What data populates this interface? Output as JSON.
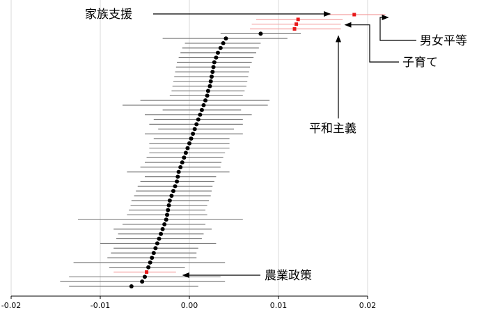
{
  "chart_data": {
    "type": "scatter",
    "subtype": "coefficient-plot-with-confidence-intervals",
    "title": "",
    "xlabel": "",
    "ylabel": "",
    "xlim": [
      -0.02,
      0.02
    ],
    "x_ticks": [
      -0.02,
      -0.01,
      0.0,
      0.01,
      0.02
    ],
    "x_tick_labels": [
      "-0.02",
      "-0.01",
      "0.00",
      "0.01",
      "0.02"
    ],
    "grid": "vertical",
    "colors": {
      "point": "#000000",
      "interval": "#808080",
      "highlight_point": "#e8191a",
      "highlight_interval": "#f4a0a0",
      "gridline": "#d9d9d9",
      "arrow": "#000000"
    },
    "points": [
      {
        "estimate": 0.0185,
        "lower": 0.0155,
        "upper": 0.022,
        "highlight": true,
        "label": "男女平等"
      },
      {
        "estimate": 0.0122,
        "lower": 0.0075,
        "upper": 0.0172,
        "highlight": true,
        "label": "家族支援"
      },
      {
        "estimate": 0.012,
        "lower": 0.007,
        "upper": 0.017,
        "highlight": true,
        "label": "子育て"
      },
      {
        "estimate": 0.0118,
        "lower": 0.0068,
        "upper": 0.017,
        "highlight": true,
        "label": "平和主義"
      },
      {
        "estimate": 0.008,
        "lower": 0.0035,
        "upper": 0.0125,
        "highlight": false
      },
      {
        "estimate": 0.0041,
        "lower": -0.003,
        "upper": 0.011,
        "highlight": false
      },
      {
        "estimate": 0.0038,
        "lower": -0.0005,
        "upper": 0.008,
        "highlight": false
      },
      {
        "estimate": 0.0035,
        "lower": -0.0008,
        "upper": 0.0078,
        "highlight": false
      },
      {
        "estimate": 0.0032,
        "lower": -0.001,
        "upper": 0.0075,
        "highlight": false
      },
      {
        "estimate": 0.003,
        "lower": -0.0012,
        "upper": 0.0072,
        "highlight": false
      },
      {
        "estimate": 0.0028,
        "lower": -0.0014,
        "upper": 0.007,
        "highlight": false
      },
      {
        "estimate": 0.0027,
        "lower": -0.0015,
        "upper": 0.0068,
        "highlight": false
      },
      {
        "estimate": 0.0026,
        "lower": -0.0016,
        "upper": 0.0067,
        "highlight": false
      },
      {
        "estimate": 0.0025,
        "lower": -0.0017,
        "upper": 0.0066,
        "highlight": false
      },
      {
        "estimate": 0.0024,
        "lower": -0.0018,
        "upper": 0.0065,
        "highlight": false
      },
      {
        "estimate": 0.0023,
        "lower": -0.0019,
        "upper": 0.0064,
        "highlight": false
      },
      {
        "estimate": 0.0021,
        "lower": -0.002,
        "upper": 0.0062,
        "highlight": false
      },
      {
        "estimate": 0.002,
        "lower": -0.0022,
        "upper": 0.006,
        "highlight": false
      },
      {
        "estimate": 0.0018,
        "lower": -0.0055,
        "upper": 0.009,
        "highlight": false
      },
      {
        "estimate": 0.0016,
        "lower": -0.0075,
        "upper": 0.0088,
        "highlight": false
      },
      {
        "estimate": 0.0014,
        "lower": -0.003,
        "upper": 0.0058,
        "highlight": false
      },
      {
        "estimate": 0.0012,
        "lower": -0.005,
        "upper": 0.007,
        "highlight": false
      },
      {
        "estimate": 0.001,
        "lower": -0.004,
        "upper": 0.006,
        "highlight": false
      },
      {
        "estimate": 0.0008,
        "lower": -0.0045,
        "upper": 0.006,
        "highlight": false
      },
      {
        "estimate": 0.0006,
        "lower": -0.0035,
        "upper": 0.005,
        "highlight": false
      },
      {
        "estimate": 0.0004,
        "lower": -0.005,
        "upper": 0.006,
        "highlight": false
      },
      {
        "estimate": 0.0002,
        "lower": -0.004,
        "upper": 0.0045,
        "highlight": false
      },
      {
        "estimate": 0.0,
        "lower": -0.0045,
        "upper": 0.0045,
        "highlight": false
      },
      {
        "estimate": -0.0002,
        "lower": -0.0045,
        "upper": 0.0045,
        "highlight": false
      },
      {
        "estimate": -0.0004,
        "lower": -0.0045,
        "upper": 0.004,
        "highlight": false
      },
      {
        "estimate": -0.0006,
        "lower": -0.0048,
        "upper": 0.0038,
        "highlight": false
      },
      {
        "estimate": -0.0008,
        "lower": -0.005,
        "upper": 0.0036,
        "highlight": false
      },
      {
        "estimate": -0.001,
        "lower": -0.0055,
        "upper": 0.0035,
        "highlight": false
      },
      {
        "estimate": -0.0012,
        "lower": -0.007,
        "upper": 0.0045,
        "highlight": false
      },
      {
        "estimate": -0.0013,
        "lower": -0.005,
        "upper": 0.003,
        "highlight": false
      },
      {
        "estimate": -0.0014,
        "lower": -0.0055,
        "upper": 0.0028,
        "highlight": false
      },
      {
        "estimate": -0.0016,
        "lower": -0.0058,
        "upper": 0.0026,
        "highlight": false
      },
      {
        "estimate": -0.0018,
        "lower": -0.006,
        "upper": 0.0025,
        "highlight": false
      },
      {
        "estimate": -0.002,
        "lower": -0.0062,
        "upper": 0.0024,
        "highlight": false
      },
      {
        "estimate": -0.0022,
        "lower": -0.0065,
        "upper": 0.0022,
        "highlight": false
      },
      {
        "estimate": -0.0023,
        "lower": -0.0066,
        "upper": 0.002,
        "highlight": false
      },
      {
        "estimate": -0.0024,
        "lower": -0.0068,
        "upper": 0.0018,
        "highlight": false
      },
      {
        "estimate": -0.0025,
        "lower": -0.007,
        "upper": 0.002,
        "highlight": false
      },
      {
        "estimate": -0.0026,
        "lower": -0.0125,
        "upper": 0.006,
        "highlight": false
      },
      {
        "estimate": -0.0028,
        "lower": -0.0075,
        "upper": 0.0018,
        "highlight": false
      },
      {
        "estimate": -0.003,
        "lower": -0.0085,
        "upper": 0.0025,
        "highlight": false
      },
      {
        "estimate": -0.0032,
        "lower": -0.008,
        "upper": 0.0016,
        "highlight": false
      },
      {
        "estimate": -0.0034,
        "lower": -0.0082,
        "upper": 0.0014,
        "highlight": false
      },
      {
        "estimate": -0.0036,
        "lower": -0.01,
        "upper": 0.003,
        "highlight": false
      },
      {
        "estimate": -0.0038,
        "lower": -0.0085,
        "upper": 0.001,
        "highlight": false
      },
      {
        "estimate": -0.004,
        "lower": -0.0088,
        "upper": 0.0008,
        "highlight": false
      },
      {
        "estimate": -0.0042,
        "lower": -0.0092,
        "upper": 0.0008,
        "highlight": false
      },
      {
        "estimate": -0.0044,
        "lower": -0.013,
        "upper": 0.004,
        "highlight": false
      },
      {
        "estimate": -0.0046,
        "lower": -0.009,
        "upper": -0.0005,
        "highlight": false
      },
      {
        "estimate": -0.0048,
        "lower": -0.0085,
        "upper": -0.0015,
        "highlight": true,
        "label": "農業政策"
      },
      {
        "estimate": -0.005,
        "lower": -0.0135,
        "upper": 0.0035,
        "highlight": false
      },
      {
        "estimate": -0.0053,
        "lower": -0.0145,
        "upper": 0.004,
        "highlight": false
      },
      {
        "estimate": -0.0065,
        "lower": -0.0135,
        "upper": 0.001,
        "highlight": false
      }
    ],
    "annotations": [
      {
        "text": "家族支援",
        "target": "家族支援"
      },
      {
        "text": "男女平等",
        "target": "男女平等"
      },
      {
        "text": "子育て",
        "target": "子育て"
      },
      {
        "text": "平和主義",
        "target": "平和主義"
      },
      {
        "text": "農業政策",
        "target": "農業政策"
      }
    ]
  }
}
